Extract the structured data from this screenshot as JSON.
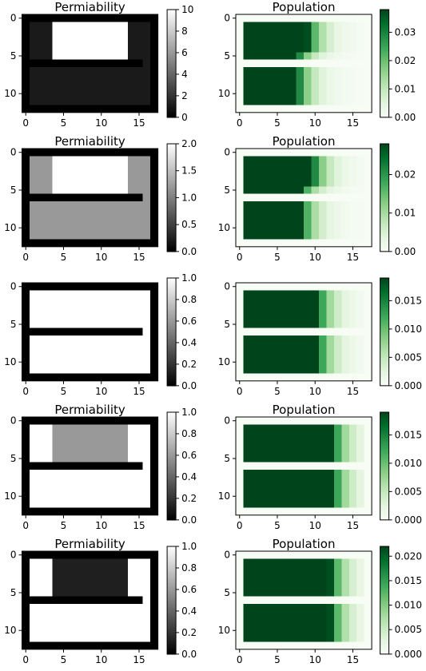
{
  "chart_data": [
    {
      "type": "heatmap",
      "title": "Permiability",
      "cmap": "gray",
      "xticks": [
        0,
        5,
        10,
        15
      ],
      "yticks": [
        0,
        5,
        10
      ],
      "colorbar": {
        "min": 0,
        "max": 10,
        "ticks": [
          "0",
          "2",
          "4",
          "6",
          "8",
          "10"
        ],
        "values": [
          0,
          2,
          4,
          6,
          8,
          10
        ]
      },
      "values": {
        "wall": 0,
        "upper_side": 1,
        "upper_center": 10,
        "lower": 1,
        "barrier": 0
      }
    },
    {
      "type": "heatmap",
      "title": "Population",
      "cmap": "Greens",
      "xticks": [
        0,
        5,
        10,
        15
      ],
      "yticks": [
        0,
        5,
        10
      ],
      "colorbar": {
        "min": 0,
        "max": 0.038,
        "ticks": [
          "0.00",
          "0.01",
          "0.02",
          "0.03"
        ],
        "values": [
          0,
          0.01,
          0.02,
          0.03
        ]
      },
      "source": {
        "row_start": 1,
        "row_end": 4,
        "col_start": 1,
        "col_end": 3
      }
    },
    {
      "type": "heatmap",
      "title": "Permiability",
      "cmap": "gray",
      "xticks": [
        0,
        5,
        10,
        15
      ],
      "yticks": [
        0,
        5,
        10
      ],
      "colorbar": {
        "min": 0,
        "max": 2,
        "ticks": [
          "0.0",
          "0.5",
          "1.0",
          "1.5",
          "2.0"
        ],
        "values": [
          0,
          0.5,
          1,
          1.5,
          2
        ]
      },
      "values": {
        "wall": 0,
        "upper_side": 1.2,
        "upper_center": 2,
        "lower": 1.2,
        "barrier": 0
      }
    },
    {
      "type": "heatmap",
      "title": "Population",
      "cmap": "Greens",
      "xticks": [
        0,
        5,
        10,
        15
      ],
      "yticks": [
        0,
        5,
        10
      ],
      "colorbar": {
        "min": 0,
        "max": 0.028,
        "ticks": [
          "0.00",
          "0.01",
          "0.02"
        ],
        "values": [
          0,
          0.01,
          0.02
        ]
      },
      "source": {
        "row_start": 1,
        "row_end": 4,
        "col_start": 1,
        "col_end": 3
      }
    },
    {
      "type": "heatmap",
      "title": "",
      "cmap": "gray",
      "xticks": [
        0,
        5,
        10,
        15
      ],
      "yticks": [
        0,
        5,
        10
      ],
      "colorbar": {
        "min": 0,
        "max": 1,
        "ticks": [
          "0.0",
          "0.2",
          "0.4",
          "0.6",
          "0.8",
          "1.0"
        ],
        "values": [
          0,
          0.2,
          0.4,
          0.6,
          0.8,
          1
        ]
      },
      "values": {
        "wall": 0,
        "upper_side": 1,
        "upper_center": 1,
        "lower": 1,
        "barrier": 0
      }
    },
    {
      "type": "heatmap",
      "title": "",
      "cmap": "Greens",
      "xticks": [
        0,
        5,
        10,
        15
      ],
      "yticks": [
        0,
        5,
        10
      ],
      "colorbar": {
        "min": 0,
        "max": 0.019,
        "ticks": [
          "0.000",
          "0.005",
          "0.010",
          "0.015"
        ],
        "values": [
          0,
          0.005,
          0.01,
          0.015
        ]
      },
      "source": {
        "row_start": 1,
        "row_end": 11,
        "col_start": 1,
        "col_end": 3
      }
    },
    {
      "type": "heatmap",
      "title": "Permiability",
      "cmap": "gray",
      "xticks": [
        0,
        5,
        10,
        15
      ],
      "yticks": [
        0,
        5,
        10
      ],
      "colorbar": {
        "min": 0,
        "max": 1,
        "ticks": [
          "0.0",
          "0.2",
          "0.4",
          "0.6",
          "0.8",
          "1.0"
        ],
        "values": [
          0,
          0.2,
          0.4,
          0.6,
          0.8,
          1
        ]
      },
      "values": {
        "wall": 0,
        "upper_side": 1,
        "upper_center": 0.6,
        "lower": 1,
        "barrier": 0
      }
    },
    {
      "type": "heatmap",
      "title": "Population",
      "cmap": "Greens",
      "xticks": [
        0,
        5,
        10,
        15
      ],
      "yticks": [
        0,
        5,
        10
      ],
      "colorbar": {
        "min": 0,
        "max": 0.019,
        "ticks": [
          "0.000",
          "0.005",
          "0.010",
          "0.015"
        ],
        "values": [
          0,
          0.005,
          0.01,
          0.015
        ]
      },
      "source": {
        "row_start": 1,
        "row_end": 11,
        "col_start": 1,
        "col_end": 5
      }
    },
    {
      "type": "heatmap",
      "title": "Permiability",
      "cmap": "gray",
      "xticks": [
        0,
        5,
        10,
        15
      ],
      "yticks": [
        0,
        5,
        10
      ],
      "colorbar": {
        "min": 0,
        "max": 1,
        "ticks": [
          "0.0",
          "0.2",
          "0.4",
          "0.6",
          "0.8",
          "1.0"
        ],
        "values": [
          0,
          0.2,
          0.4,
          0.6,
          0.8,
          1
        ]
      },
      "values": {
        "wall": 0,
        "upper_side": 1,
        "upper_center": 0.12,
        "lower": 1,
        "barrier": 0
      }
    },
    {
      "type": "heatmap",
      "title": "Population",
      "cmap": "Greens",
      "xticks": [
        0,
        5,
        10,
        15
      ],
      "yticks": [
        0,
        5,
        10
      ],
      "colorbar": {
        "min": 0,
        "max": 0.022,
        "ticks": [
          "0.000",
          "0.005",
          "0.010",
          "0.015",
          "0.020"
        ],
        "values": [
          0,
          0.005,
          0.01,
          0.015,
          0.02
        ]
      },
      "source": {
        "row_start": 1,
        "row_end": 11,
        "col_start": 1,
        "col_end": 5
      }
    }
  ]
}
